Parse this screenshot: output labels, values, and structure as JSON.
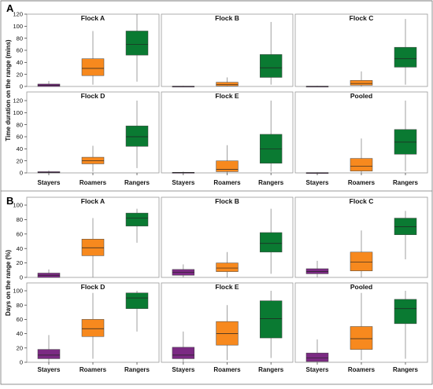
{
  "colors": {
    "Stayers": "#7b2a83",
    "Roamers": "#f7891e",
    "Rangers": "#0a7a32"
  },
  "chart_data": [
    {
      "type": "boxplot",
      "label": "A",
      "ylabel": "Time duration on the range (mins)",
      "ylim": [
        0,
        120
      ],
      "yticks": [
        0,
        20,
        40,
        60,
        80,
        100,
        120
      ],
      "categories": [
        "Stayers",
        "Roamers",
        "Rangers"
      ],
      "panels": [
        {
          "title": "Flock A",
          "boxes": [
            {
              "category": "Stayers",
              "min": 0,
              "q1": 0,
              "median": 2,
              "q3": 4,
              "max": 9
            },
            {
              "category": "Roamers",
              "min": 3,
              "q1": 18,
              "median": 30,
              "q3": 46,
              "max": 92
            },
            {
              "category": "Rangers",
              "min": 8,
              "q1": 52,
              "median": 70,
              "q3": 92,
              "max": 120
            }
          ]
        },
        {
          "title": "Flock B",
          "boxes": [
            {
              "category": "Stayers",
              "min": 0,
              "q1": 0,
              "median": 0,
              "q3": 0.5,
              "max": 1
            },
            {
              "category": "Roamers",
              "min": 0,
              "q1": 1,
              "median": 3,
              "q3": 7,
              "max": 15
            },
            {
              "category": "Rangers",
              "min": 3,
              "q1": 15,
              "median": 31,
              "q3": 53,
              "max": 107
            }
          ]
        },
        {
          "title": "Flock C",
          "boxes": [
            {
              "category": "Stayers",
              "min": 0,
              "q1": 0,
              "median": 0,
              "q3": 0.5,
              "max": 1
            },
            {
              "category": "Roamers",
              "min": 0,
              "q1": 2,
              "median": 5,
              "q3": 10,
              "max": 25
            },
            {
              "category": "Rangers",
              "min": 3,
              "q1": 32,
              "median": 46,
              "q3": 65,
              "max": 112
            }
          ]
        },
        {
          "title": "Flock D",
          "boxes": [
            {
              "category": "Stayers",
              "min": 0,
              "q1": 0,
              "median": 1,
              "q3": 2,
              "max": 4
            },
            {
              "category": "Roamers",
              "min": 2,
              "q1": 15,
              "median": 20,
              "q3": 26,
              "max": 45
            },
            {
              "category": "Rangers",
              "min": 8,
              "q1": 44,
              "median": 60,
              "q3": 78,
              "max": 120
            }
          ]
        },
        {
          "title": "Flock E",
          "boxes": [
            {
              "category": "Stayers",
              "min": 0,
              "q1": 0,
              "median": 0.5,
              "q3": 1,
              "max": 2
            },
            {
              "category": "Roamers",
              "min": 0,
              "q1": 2,
              "median": 6,
              "q3": 20,
              "max": 46
            },
            {
              "category": "Rangers",
              "min": 2,
              "q1": 16,
              "median": 40,
              "q3": 64,
              "max": 120
            }
          ]
        },
        {
          "title": "Pooled",
          "boxes": [
            {
              "category": "Stayers",
              "min": 0,
              "q1": 0,
              "median": 0,
              "q3": 0.5,
              "max": 1
            },
            {
              "category": "Roamers",
              "min": 0,
              "q1": 3,
              "median": 11,
              "q3": 24,
              "max": 57
            },
            {
              "category": "Rangers",
              "min": 3,
              "q1": 31,
              "median": 51,
              "q3": 72,
              "max": 120
            }
          ]
        }
      ]
    },
    {
      "type": "boxplot",
      "label": "B",
      "ylabel": "Days on the range (%)",
      "ylim": [
        0,
        100
      ],
      "yticks": [
        0,
        20,
        40,
        60,
        80,
        100
      ],
      "categories": [
        "Stayers",
        "Roamers",
        "Rangers"
      ],
      "panels": [
        {
          "title": "Flock A",
          "boxes": [
            {
              "category": "Stayers",
              "min": 0,
              "q1": 0,
              "median": 3,
              "q3": 6,
              "max": 11
            },
            {
              "category": "Roamers",
              "min": 0,
              "q1": 30,
              "median": 41,
              "q3": 53,
              "max": 82
            },
            {
              "category": "Rangers",
              "min": 48,
              "q1": 71,
              "median": 82,
              "q3": 89,
              "max": 95
            }
          ]
        },
        {
          "title": "Flock B",
          "boxes": [
            {
              "category": "Stayers",
              "min": 0,
              "q1": 3,
              "median": 7,
              "q3": 11,
              "max": 18
            },
            {
              "category": "Roamers",
              "min": 0,
              "q1": 8,
              "median": 13,
              "q3": 20,
              "max": 35
            },
            {
              "category": "Rangers",
              "min": 5,
              "q1": 35,
              "median": 47,
              "q3": 62,
              "max": 95
            }
          ]
        },
        {
          "title": "Flock C",
          "boxes": [
            {
              "category": "Stayers",
              "min": 0,
              "q1": 5,
              "median": 8,
              "q3": 12,
              "max": 23
            },
            {
              "category": "Roamers",
              "min": 0,
              "q1": 9,
              "median": 21,
              "q3": 35,
              "max": 65
            },
            {
              "category": "Rangers",
              "min": 25,
              "q1": 59,
              "median": 70,
              "q3": 82,
              "max": 92
            }
          ]
        },
        {
          "title": "Flock D",
          "boxes": [
            {
              "category": "Stayers",
              "min": 0,
              "q1": 5,
              "median": 10,
              "q3": 18,
              "max": 38
            },
            {
              "category": "Roamers",
              "min": 5,
              "q1": 36,
              "median": 47,
              "q3": 60,
              "max": 97
            },
            {
              "category": "Rangers",
              "min": 43,
              "q1": 75,
              "median": 90,
              "q3": 97,
              "max": 100
            }
          ]
        },
        {
          "title": "Flock E",
          "boxes": [
            {
              "category": "Stayers",
              "min": 0,
              "q1": 5,
              "median": 10,
              "q3": 21,
              "max": 43
            },
            {
              "category": "Roamers",
              "min": 3,
              "q1": 24,
              "median": 40,
              "q3": 57,
              "max": 80
            },
            {
              "category": "Rangers",
              "min": 6,
              "q1": 34,
              "median": 61,
              "q3": 86,
              "max": 100
            }
          ]
        },
        {
          "title": "Pooled",
          "boxes": [
            {
              "category": "Stayers",
              "min": 0,
              "q1": 1,
              "median": 6,
              "q3": 13,
              "max": 32
            },
            {
              "category": "Roamers",
              "min": 3,
              "q1": 18,
              "median": 33,
              "q3": 50,
              "max": 97
            },
            {
              "category": "Rangers",
              "min": 5,
              "q1": 54,
              "median": 75,
              "q3": 88,
              "max": 100
            }
          ]
        }
      ]
    }
  ]
}
